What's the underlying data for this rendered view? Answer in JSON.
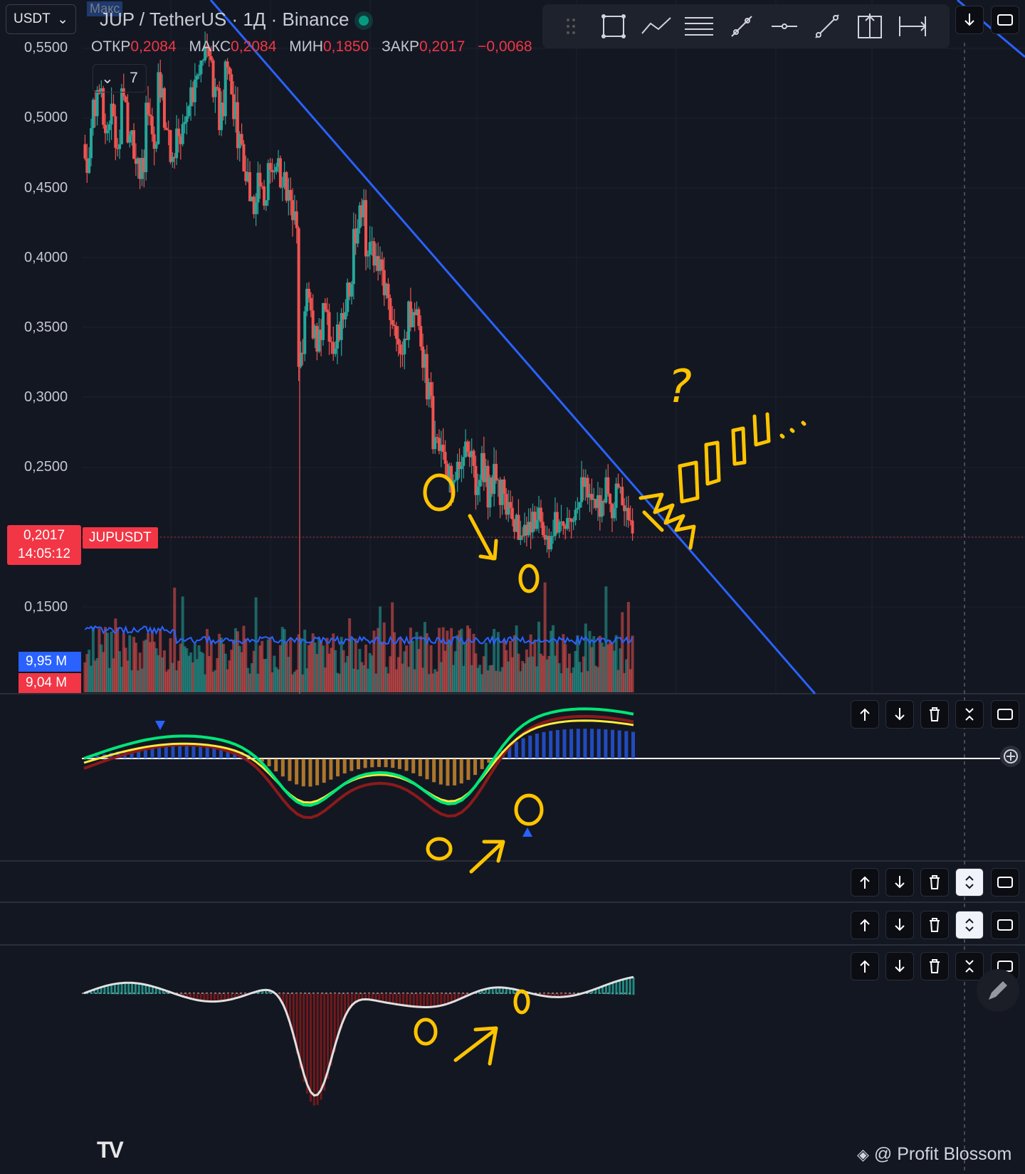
{
  "header": {
    "currency_button": "USDT",
    "title": "JUP / TetherUS · 1Д · Binance",
    "max_tag": "Макс",
    "ohlc": [
      {
        "key": "ОТКР",
        "value": "0,2084"
      },
      {
        "key": "МАКС",
        "value": "0,2084"
      },
      {
        "key": "МИН",
        "value": "0,1850"
      },
      {
        "key": "ЗАКР",
        "value": "0,2017"
      },
      {
        "key": "",
        "value": "−0,0068"
      }
    ],
    "indicators_count": "7"
  },
  "price_axis": [
    "0,5500",
    "0,5000",
    "0,4500",
    "0,4000",
    "0,3500",
    "0,3000",
    "0,2500",
    "0,1500"
  ],
  "last_price": {
    "price": "0,2017",
    "countdown": "14:05:12",
    "symbol": "JUPUSDT"
  },
  "volume": {
    "ma_label": "9,95 M",
    "last_label": "9,04 M"
  },
  "annotations": {
    "question_mark": "?"
  },
  "watermark": "@ Profit Blossom",
  "logo_text": "TV",
  "colors": {
    "up": "#26a69a",
    "down": "#ef5350",
    "trendline": "#2962ff",
    "annotation": "#ffc400",
    "background": "#131722",
    "macd_fast": "#00e676",
    "macd_signal": "#ffeb3b"
  },
  "chart_data": {
    "type": "candlestick",
    "interval": "1D",
    "symbol": "JUPUSDT",
    "ylim": [
      0.12,
      0.56
    ],
    "close_series": [
      0.47,
      0.5,
      0.52,
      0.49,
      0.5,
      0.48,
      0.51,
      0.49,
      0.47,
      0.46,
      0.5,
      0.48,
      0.52,
      0.49,
      0.47,
      0.48,
      0.5,
      0.51,
      0.53,
      0.55,
      0.54,
      0.52,
      0.5,
      0.53,
      0.51,
      0.48,
      0.46,
      0.43,
      0.45,
      0.44,
      0.46,
      0.47,
      0.46,
      0.44,
      0.42,
      0.33,
      0.37,
      0.35,
      0.34,
      0.36,
      0.33,
      0.34,
      0.36,
      0.38,
      0.42,
      0.44,
      0.41,
      0.4,
      0.39,
      0.37,
      0.35,
      0.33,
      0.34,
      0.36,
      0.35,
      0.33,
      0.3,
      0.27,
      0.26,
      0.25,
      0.24,
      0.25,
      0.26,
      0.25,
      0.24,
      0.25,
      0.23,
      0.24,
      0.23,
      0.22,
      0.215,
      0.2,
      0.21,
      0.205,
      0.21,
      0.2,
      0.2,
      0.21,
      0.205,
      0.21,
      0.22,
      0.235,
      0.23,
      0.22,
      0.225,
      0.23,
      0.22,
      0.235,
      0.22,
      0.2017
    ],
    "macd_signal_trend": "bullish crossover near zero line",
    "trendline": "descending resistance from 0.56 to ~0.12"
  }
}
